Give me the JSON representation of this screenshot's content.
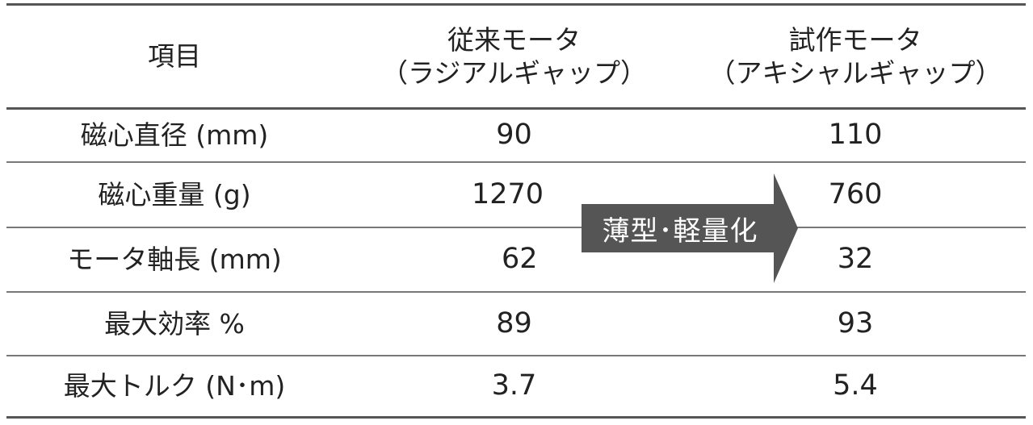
{
  "header": {
    "item": "項目",
    "conventional_line1": "従来モータ",
    "conventional_line2": "（ラジアルギャップ）",
    "prototype_line1": "試作モータ",
    "prototype_line2": "（アキシャルギャップ）"
  },
  "rows": [
    {
      "label": "磁心直径 (mm)",
      "conventional": "90",
      "prototype": "110"
    },
    {
      "label": "磁心重量 (g)",
      "conventional": "1270",
      "prototype": "760"
    },
    {
      "label": "モータ軸長 (mm)",
      "conventional": "62",
      "prototype": "32"
    },
    {
      "label": "最大効率 %",
      "conventional": "89",
      "prototype": "93"
    },
    {
      "label": "最大トルク (N･m)",
      "conventional": "3.7",
      "prototype": "5.4"
    }
  ],
  "arrow": {
    "label": "薄型･軽量化",
    "fill_color": "#555555",
    "text_color": "#ffffff"
  }
}
